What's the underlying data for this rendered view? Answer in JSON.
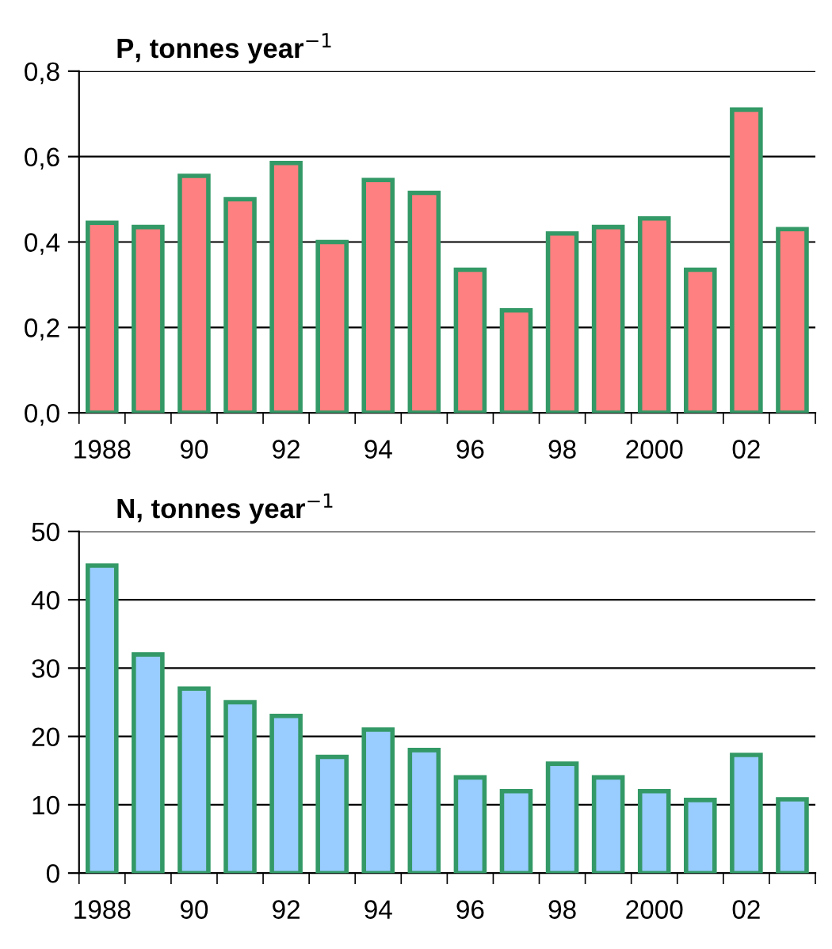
{
  "chart_data": [
    {
      "type": "bar",
      "title": "P, tonnes year$^{−1}$",
      "categories": [
        "1988",
        null,
        "90",
        null,
        "92",
        null,
        "94",
        null,
        "96",
        null,
        "98",
        null,
        "2000",
        null,
        "02",
        null
      ],
      "series": [
        {
          "color": "#ff8080",
          "values": [
            0.445,
            0.435,
            0.555,
            0.5,
            0.585,
            0.4,
            0.545,
            0.515,
            0.335,
            0.24,
            0.42,
            0.435,
            0.455,
            0.335,
            0.71,
            0.43
          ]
        }
      ],
      "ylim": [
        0,
        0.8
      ],
      "yticks": [
        {
          "value": 0,
          "label": "0,0"
        },
        {
          "value": 0.2,
          "label": "0,2"
        },
        {
          "value": 0.4,
          "label": "0,4"
        },
        {
          "value": 0.6,
          "label": "0,6"
        },
        {
          "value": 0.8,
          "label": "0,8"
        }
      ],
      "grid": "y"
    },
    {
      "type": "bar",
      "title": "N, tonnes year$^{−1}$",
      "categories": [
        "1988",
        null,
        "90",
        null,
        "92",
        null,
        "94",
        null,
        "96",
        null,
        "98",
        null,
        "2000",
        null,
        "02",
        null
      ],
      "series": [
        {
          "color": "#99ccff",
          "values": [
            45,
            32,
            27,
            25,
            23,
            17,
            21,
            18,
            14,
            12,
            16,
            14,
            12,
            10.7,
            17.3,
            10.8
          ]
        }
      ],
      "ylim": [
        0,
        50
      ],
      "yticks": [
        0,
        10,
        20,
        30,
        40,
        50
      ],
      "grid": "y"
    }
  ]
}
